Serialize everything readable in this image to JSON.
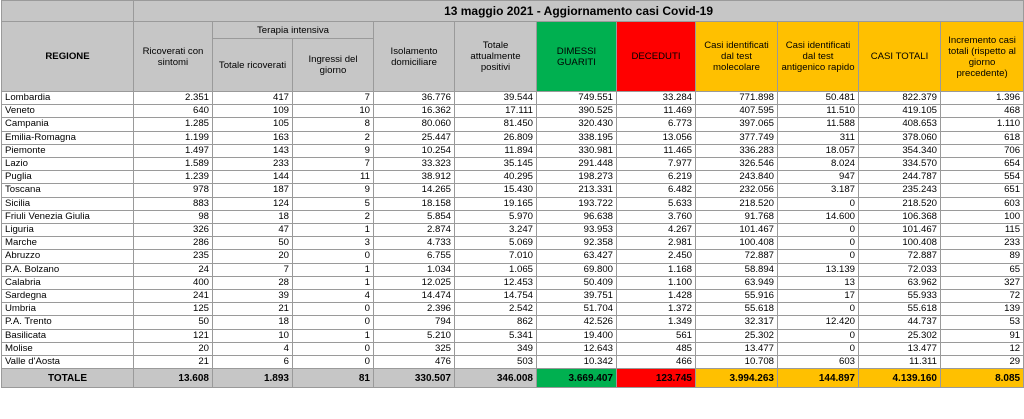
{
  "title": "13 maggio 2021 - Aggiornamento casi Covid-19",
  "headers": {
    "regione": "REGIONE",
    "ricoverati": "Ricoverati con sintomi",
    "terapia_group": "Terapia intensiva",
    "totale_ricoverati": "Totale ricoverati",
    "ingressi": "Ingressi del giorno",
    "isolamento": "Isolamento domiciliare",
    "totale_positivi": "Totale attualmente positivi",
    "dimessi": "DIMESSI GUARITI",
    "deceduti": "DECEDUTI",
    "casi_molecolare": "Casi identificati dal test molecolare",
    "casi_antigenico": "Casi identificati dal test antigenico rapido",
    "casi_totali": "CASI TOTALI",
    "incremento": "Incremento casi totali (rispetto al giorno precedente)"
  },
  "rows": [
    [
      "Lombardia",
      "2.351",
      "417",
      "7",
      "36.776",
      "39.544",
      "749.551",
      "33.284",
      "771.898",
      "50.481",
      "822.379",
      "1.396"
    ],
    [
      "Veneto",
      "640",
      "109",
      "10",
      "16.362",
      "17.111",
      "390.525",
      "11.469",
      "407.595",
      "11.510",
      "419.105",
      "468"
    ],
    [
      "Campania",
      "1.285",
      "105",
      "8",
      "80.060",
      "81.450",
      "320.430",
      "6.773",
      "397.065",
      "11.588",
      "408.653",
      "1.110"
    ],
    [
      "Emilia-Romagna",
      "1.199",
      "163",
      "2",
      "25.447",
      "26.809",
      "338.195",
      "13.056",
      "377.749",
      "311",
      "378.060",
      "618"
    ],
    [
      "Piemonte",
      "1.497",
      "143",
      "9",
      "10.254",
      "11.894",
      "330.981",
      "11.465",
      "336.283",
      "18.057",
      "354.340",
      "706"
    ],
    [
      "Lazio",
      "1.589",
      "233",
      "7",
      "33.323",
      "35.145",
      "291.448",
      "7.977",
      "326.546",
      "8.024",
      "334.570",
      "654"
    ],
    [
      "Puglia",
      "1.239",
      "144",
      "11",
      "38.912",
      "40.295",
      "198.273",
      "6.219",
      "243.840",
      "947",
      "244.787",
      "554"
    ],
    [
      "Toscana",
      "978",
      "187",
      "9",
      "14.265",
      "15.430",
      "213.331",
      "6.482",
      "232.056",
      "3.187",
      "235.243",
      "651"
    ],
    [
      "Sicilia",
      "883",
      "124",
      "5",
      "18.158",
      "19.165",
      "193.722",
      "5.633",
      "218.520",
      "0",
      "218.520",
      "603"
    ],
    [
      "Friuli Venezia Giulia",
      "98",
      "18",
      "2",
      "5.854",
      "5.970",
      "96.638",
      "3.760",
      "91.768",
      "14.600",
      "106.368",
      "100"
    ],
    [
      "Liguria",
      "326",
      "47",
      "1",
      "2.874",
      "3.247",
      "93.953",
      "4.267",
      "101.467",
      "0",
      "101.467",
      "115"
    ],
    [
      "Marche",
      "286",
      "50",
      "3",
      "4.733",
      "5.069",
      "92.358",
      "2.981",
      "100.408",
      "0",
      "100.408",
      "233"
    ],
    [
      "Abruzzo",
      "235",
      "20",
      "0",
      "6.755",
      "7.010",
      "63.427",
      "2.450",
      "72.887",
      "0",
      "72.887",
      "89"
    ],
    [
      "P.A. Bolzano",
      "24",
      "7",
      "1",
      "1.034",
      "1.065",
      "69.800",
      "1.168",
      "58.894",
      "13.139",
      "72.033",
      "65"
    ],
    [
      "Calabria",
      "400",
      "28",
      "1",
      "12.025",
      "12.453",
      "50.409",
      "1.100",
      "63.949",
      "13",
      "63.962",
      "327"
    ],
    [
      "Sardegna",
      "241",
      "39",
      "4",
      "14.474",
      "14.754",
      "39.751",
      "1.428",
      "55.916",
      "17",
      "55.933",
      "72"
    ],
    [
      "Umbria",
      "125",
      "21",
      "0",
      "2.396",
      "2.542",
      "51.704",
      "1.372",
      "55.618",
      "0",
      "55.618",
      "139"
    ],
    [
      "P.A. Trento",
      "50",
      "18",
      "0",
      "794",
      "862",
      "42.526",
      "1.349",
      "32.317",
      "12.420",
      "44.737",
      "53"
    ],
    [
      "Basilicata",
      "121",
      "10",
      "1",
      "5.210",
      "5.341",
      "19.400",
      "561",
      "25.302",
      "0",
      "25.302",
      "91"
    ],
    [
      "Molise",
      "20",
      "4",
      "0",
      "325",
      "349",
      "12.643",
      "485",
      "13.477",
      "0",
      "13.477",
      "12"
    ],
    [
      "Valle d'Aosta",
      "21",
      "6",
      "0",
      "476",
      "503",
      "10.342",
      "466",
      "10.708",
      "603",
      "11.311",
      "29"
    ]
  ],
  "total": [
    "TOTALE",
    "13.608",
    "1.893",
    "81",
    "330.507",
    "346.008",
    "3.669.407",
    "123.745",
    "3.994.263",
    "144.897",
    "4.139.160",
    "8.085"
  ],
  "colors": {
    "header_gray": "#c6c6c6",
    "dimessi_green": "#00b050",
    "deceduti_red": "#ff0000",
    "casi_yellow": "#ffc000"
  }
}
